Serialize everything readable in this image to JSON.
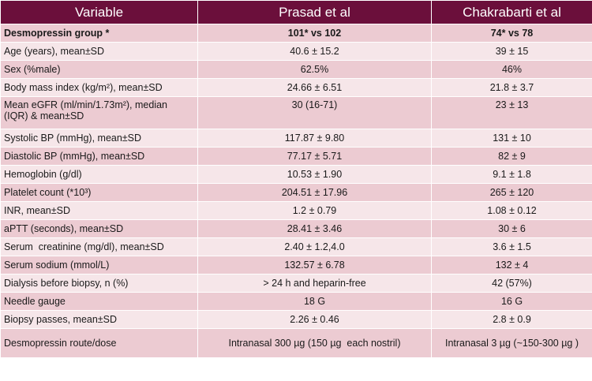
{
  "header": [
    "Variable",
    "Prasad et al",
    "Chakrabarti et al"
  ],
  "rows": [
    {
      "variable": "Desmopressin group *",
      "prasad": "101* vs 102",
      "chakrabarti": "74* vs 78"
    },
    {
      "variable": "Age (years), mean±SD",
      "prasad": "40.6 ± 15.2",
      "chakrabarti": "39 ± 15"
    },
    {
      "variable": "Sex (%male)",
      "prasad": "62.5%",
      "chakrabarti": "46%"
    },
    {
      "variable": "Body mass index (kg/m²), mean±SD",
      "prasad": "24.66 ± 6.51",
      "chakrabarti": "21.8 ± 3.7"
    },
    {
      "variable": "Mean eGFR (ml/min/1.73m²), median (IQR) & mean±SD",
      "prasad": "30 (16-71)",
      "chakrabarti": "23 ± 13"
    },
    {
      "variable": "Systolic BP (mmHg), mean±SD",
      "prasad": "117.87 ± 9.80",
      "chakrabarti": "131 ± 10"
    },
    {
      "variable": "Diastolic BP (mmHg), mean±SD",
      "prasad": "77.17 ± 5.71",
      "chakrabarti": "82 ± 9"
    },
    {
      "variable": "Hemoglobin (g/dl)",
      "prasad": "10.53 ± 1.90",
      "chakrabarti": "9.1 ± 1.8"
    },
    {
      "variable": "Platelet count (*10³)",
      "prasad": "204.51 ± 17.96",
      "chakrabarti": "265 ± 120"
    },
    {
      "variable": "INR, mean±SD",
      "prasad": "1.2 ± 0.79",
      "chakrabarti": "1.08 ± 0.12"
    },
    {
      "variable": "aPTT (seconds), mean±SD",
      "prasad": "28.41 ± 3.46",
      "chakrabarti": "30 ± 6"
    },
    {
      "variable": "Serum  creatinine (mg/dl), mean±SD",
      "prasad": "2.40 ± 1.2,4.0",
      "chakrabarti": "3.6 ± 1.5"
    },
    {
      "variable": "Serum sodium (mmol/L)",
      "prasad": "132.57 ± 6.78",
      "chakrabarti": "132 ± 4"
    },
    {
      "variable": "Dialysis before biopsy, n (%)",
      "prasad": "> 24 h and heparin-free",
      "chakrabarti": "42 (57%)"
    },
    {
      "variable": "Needle gauge",
      "prasad": "18 G",
      "chakrabarti": "16 G"
    },
    {
      "variable": "Biopsy passes, mean±SD",
      "prasad": "2.26 ± 0.46",
      "chakrabarti": "2.8 ± 0.9"
    },
    {
      "variable": "Desmopressin route/dose",
      "prasad": "Intranasal 300 µg (150 µg  each nostril)",
      "chakrabarti": "Intranasal 3 µg (~150-300 µg )"
    }
  ]
}
